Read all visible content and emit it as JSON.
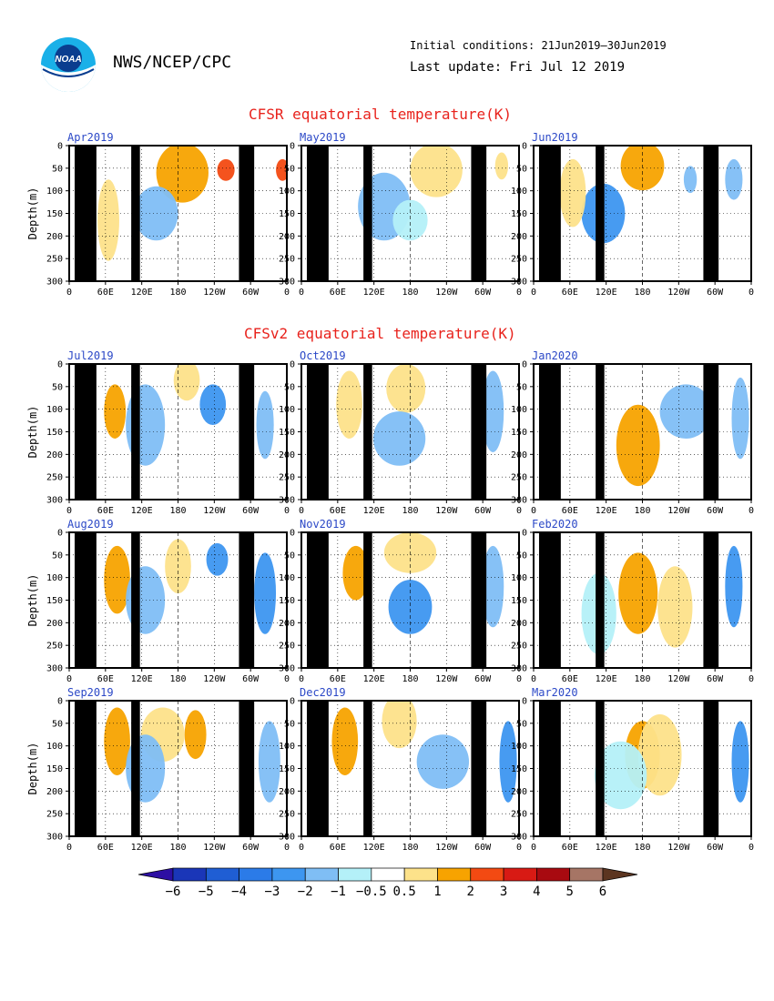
{
  "header": {
    "org": "NWS/NCEP/CPC",
    "initial_conditions": "Initial conditions: 21Jun2019–30Jun2019",
    "last_update": "Last update: Fri Jul 12 2019",
    "logo_text": "NOAA"
  },
  "sections": [
    {
      "title": "CFSR equatorial temperature(K)"
    },
    {
      "title": "CFSv2 equatorial temperature(K)"
    }
  ],
  "colors": {
    "title": "#e8221c",
    "panel_title": "#2b48c7",
    "land": "#000000"
  },
  "chart_data": {
    "type": "heatmap",
    "ylabel": "Depth(m)",
    "yticks": [
      "0",
      "50",
      "100",
      "150",
      "200",
      "250",
      "300"
    ],
    "ylim": [
      300,
      0
    ],
    "xticks": [
      "0",
      "60E",
      "120E",
      "180",
      "120W",
      "60W",
      "0"
    ],
    "panels": [
      {
        "title": "Apr2019",
        "section": 0
      },
      {
        "title": "May2019",
        "section": 0
      },
      {
        "title": "Jun2019",
        "section": 0
      },
      {
        "title": "Jul2019",
        "section": 1
      },
      {
        "title": "Oct2019",
        "section": 1
      },
      {
        "title": "Jan2020",
        "section": 1
      },
      {
        "title": "Aug2019",
        "section": 1
      },
      {
        "title": "Nov2019",
        "section": 1
      },
      {
        "title": "Feb2020",
        "section": 1
      },
      {
        "title": "Sep2019",
        "section": 1
      },
      {
        "title": "Dec2019",
        "section": 1
      },
      {
        "title": "Mar2020",
        "section": 1
      }
    ],
    "colorbar": {
      "labels": [
        "-6",
        "-5",
        "-4",
        "-3",
        "-2",
        "-1",
        "-0.5",
        "0.5",
        "1",
        "2",
        "3",
        "4",
        "5",
        "6"
      ],
      "colors": [
        "#2d0fa3",
        "#1a36b8",
        "#1f5ed4",
        "#2b7be8",
        "#3d96f0",
        "#7fbef5",
        "#b4f0f8",
        "#ffffff",
        "#fde28a",
        "#f7a300",
        "#f34a12",
        "#d81a14",
        "#a80a10",
        "#a67565",
        "#5c3520"
      ]
    }
  }
}
